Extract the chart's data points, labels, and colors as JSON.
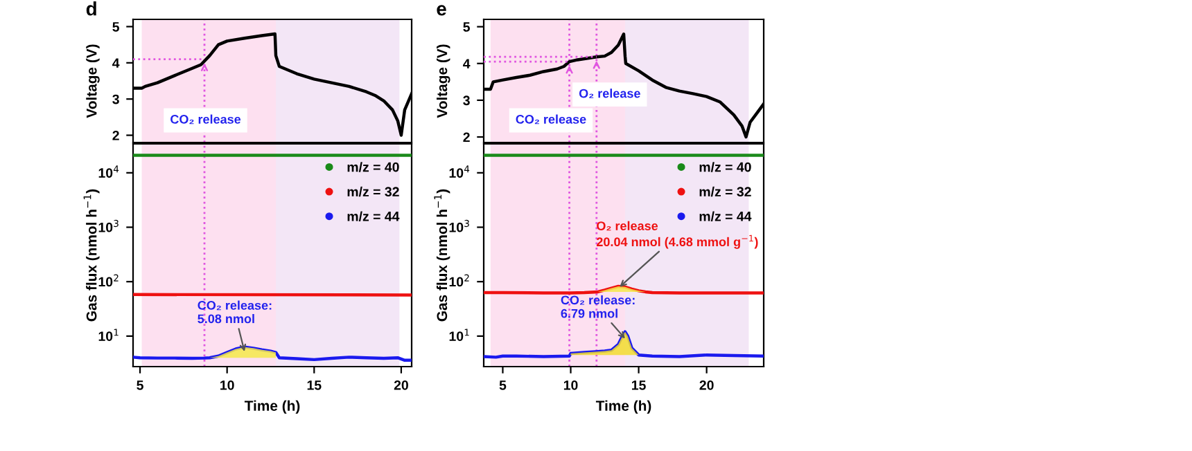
{
  "chart_data": [
    {
      "type": "line",
      "title": "d",
      "ylabel": "Voltage (V)",
      "xlim": [
        4.6,
        20.6
      ],
      "xticks": [
        5,
        10,
        15,
        20
      ],
      "ylim": [
        1.8,
        5.2
      ],
      "yticks": [
        2,
        3,
        4,
        5
      ],
      "tick_labels": "y",
      "grid": false,
      "legend": false,
      "bands": [
        {
          "axis": "x",
          "from": 5.1,
          "to": 12.8,
          "color": "#fde0f0"
        },
        {
          "axis": "x",
          "from": 12.8,
          "to": 19.9,
          "color": "#f3e6f6"
        }
      ],
      "ref_lines": [
        {
          "axis": "x",
          "value": 8.7,
          "color": "#e055e0",
          "line_style": "dotted"
        }
      ],
      "series": [
        {
          "color": "#000000",
          "x": [
            4.6,
            5.1,
            5.3,
            6,
            7,
            8,
            8.5,
            9,
            9.5,
            10,
            11,
            12,
            12.75,
            12.8,
            13,
            14,
            15,
            16,
            17,
            18,
            18.5,
            19,
            19.5,
            19.8,
            20.0,
            20.2,
            20.6
          ],
          "values": [
            3.3,
            3.3,
            3.35,
            3.45,
            3.65,
            3.85,
            3.95,
            4.2,
            4.5,
            4.6,
            4.68,
            4.75,
            4.8,
            4.2,
            3.9,
            3.7,
            3.55,
            3.45,
            3.35,
            3.2,
            3.1,
            2.95,
            2.7,
            2.4,
            2.0,
            2.7,
            3.15
          ]
        },
        {
          "color": "#e055e0",
          "line_style": "dotted",
          "x": [
            4.6,
            8.7
          ],
          "values": [
            4.1,
            4.1
          ]
        }
      ],
      "annotations": [
        "CO₂ release"
      ]
    },
    {
      "type": "line",
      "xlabel": "Time (h)",
      "ylabel": "Gas flux (nmol h$^{−1}$)",
      "log": "y",
      "xlim": [
        4.6,
        20.6
      ],
      "xticks": [
        5,
        10,
        15,
        20
      ],
      "ylim": [
        2.75,
        34000
      ],
      "yticks": [
        {
          "value": 10,
          "label": "10$^{1}$"
        },
        {
          "value": 100,
          "label": "10$^{2}$"
        },
        {
          "value": 1000,
          "label": "10$^{3}$"
        },
        {
          "value": 10000,
          "label": "10$^{4}$"
        }
      ],
      "grid": false,
      "legend": "upper right",
      "bands": [
        {
          "axis": "x",
          "from": 5.1,
          "to": 12.8,
          "color": "#fde0f0"
        },
        {
          "axis": "x",
          "from": 12.8,
          "to": 19.9,
          "color": "#f3e6f6"
        }
      ],
      "ref_lines": [
        {
          "axis": "x",
          "value": 8.7,
          "color": "#e055e0",
          "line_style": "dotted"
        }
      ],
      "series": [
        {
          "name": "m/z = 40",
          "color": "#1a8a1a",
          "x": [
            4.6,
            20.6
          ],
          "values": [
            21000,
            21000
          ]
        },
        {
          "name": "m/z = 32",
          "color": "#ee1111",
          "x": [
            4.6,
            20.6
          ],
          "values": [
            58,
            57
          ]
        },
        {
          "type": "area",
          "color": "#f5e94a",
          "x": [
            9,
            9.5,
            10,
            10.5,
            11,
            11.5,
            12,
            12.5,
            12.8
          ],
          "values": [
            4.0,
            4.3,
            5.0,
            5.8,
            6.3,
            6.0,
            5.6,
            5.3,
            5.0
          ]
        },
        {
          "name": "m/z = 44",
          "color": "#1a1aee",
          "x": [
            4.6,
            5,
            6,
            7,
            8,
            8.7,
            9,
            9.5,
            10,
            10.5,
            11,
            11.5,
            12,
            12.5,
            12.8,
            13,
            14,
            15,
            16,
            17,
            18,
            19,
            19.8,
            20.2,
            20.6
          ],
          "values": [
            4.1,
            4.0,
            3.95,
            3.95,
            3.9,
            3.95,
            4.0,
            4.3,
            5.0,
            5.8,
            6.3,
            6.0,
            5.6,
            5.3,
            5.0,
            4.0,
            3.85,
            3.7,
            3.9,
            4.1,
            4.0,
            3.9,
            4.0,
            3.6,
            3.6
          ]
        }
      ],
      "annotations": [
        {
          "text": "CO₂ release:\n5.08 nmol",
          "x": 11,
          "y": 5.2
        }
      ]
    },
    {
      "type": "line",
      "title": "e",
      "ylabel": "Voltage (V)",
      "xlim": [
        3.6,
        24.2
      ],
      "xticks": [
        5,
        10,
        15,
        20
      ],
      "ylim": [
        1.85,
        5.2
      ],
      "yticks": [
        2,
        3,
        4,
        5
      ],
      "tick_labels": "y",
      "grid": false,
      "legend": false,
      "bands": [
        {
          "axis": "x",
          "from": 4.1,
          "to": 14.0,
          "color": "#fde0f0"
        },
        {
          "axis": "x",
          "from": 14.0,
          "to": 23.1,
          "color": "#f3e6f6"
        }
      ],
      "ref_lines": [
        {
          "axis": "x",
          "value": 9.9,
          "color": "#e055e0",
          "line_style": "dotted"
        },
        {
          "axis": "x",
          "value": 11.9,
          "color": "#e055e0",
          "line_style": "dotted"
        }
      ],
      "series": [
        {
          "color": "#000000",
          "x": [
            3.6,
            4.1,
            4.3,
            5,
            6,
            7,
            8,
            9,
            9.5,
            9.9,
            10.5,
            11.9,
            12.5,
            13,
            13.5,
            13.9,
            14.0,
            14.05,
            15,
            16,
            17,
            18,
            19,
            20,
            21,
            22,
            22.6,
            22.9,
            23.2,
            23.8,
            24.2
          ],
          "values": [
            3.3,
            3.3,
            3.5,
            3.55,
            3.62,
            3.68,
            3.78,
            3.85,
            3.92,
            4.05,
            4.1,
            4.18,
            4.2,
            4.3,
            4.5,
            4.8,
            4.2,
            4.0,
            3.8,
            3.55,
            3.35,
            3.25,
            3.18,
            3.1,
            2.95,
            2.6,
            2.3,
            2.0,
            2.4,
            2.7,
            2.9
          ]
        },
        {
          "color": "#e055e0",
          "line_style": "dotted",
          "x": [
            3.6,
            9.9
          ],
          "values": [
            4.05,
            4.05
          ]
        },
        {
          "color": "#e055e0",
          "line_style": "dotted",
          "x": [
            3.6,
            11.9
          ],
          "values": [
            4.18,
            4.18
          ]
        }
      ],
      "annotations": [
        "CO₂ release",
        "O₂ release"
      ]
    },
    {
      "type": "line",
      "xlabel": "Time (h)",
      "ylabel": "Gas flux (nmol h$^{−1}$)",
      "log": "y",
      "xlim": [
        3.6,
        24.2
      ],
      "xticks": [
        5,
        10,
        15,
        20
      ],
      "ylim": [
        2.75,
        34000
      ],
      "yticks": [
        {
          "value": 10,
          "label": "10$^{1}$"
        },
        {
          "value": 100,
          "label": "10$^{2}$"
        },
        {
          "value": 1000,
          "label": "10$^{3}$"
        },
        {
          "value": 10000,
          "label": "10$^{4}$"
        }
      ],
      "grid": false,
      "legend": "upper right",
      "bands": [
        {
          "axis": "x",
          "from": 4.1,
          "to": 14.0,
          "color": "#fde0f0"
        },
        {
          "axis": "x",
          "from": 14.0,
          "to": 23.1,
          "color": "#f3e6f6"
        }
      ],
      "ref_lines": [
        {
          "axis": "x",
          "value": 9.9,
          "color": "#e055e0",
          "line_style": "dotted"
        },
        {
          "axis": "x",
          "value": 11.9,
          "color": "#e055e0",
          "line_style": "dotted"
        }
      ],
      "series": [
        {
          "name": "m/z = 40",
          "color": "#1a8a1a",
          "x": [
            3.6,
            24.2
          ],
          "values": [
            21000,
            21000
          ]
        },
        {
          "type": "area",
          "color": "#f5e94a",
          "x": [
            12,
            12.5,
            13,
            13.5,
            14,
            14.5,
            15,
            15.5
          ],
          "values": [
            65,
            70,
            76,
            82,
            80,
            73,
            68,
            65
          ]
        },
        {
          "name": "m/z = 32",
          "color": "#ee1111",
          "x": [
            3.6,
            5,
            8,
            10,
            11,
            12,
            12.5,
            13,
            13.5,
            14,
            14.5,
            15,
            15.5,
            16,
            18,
            20,
            22,
            24.2
          ],
          "values": [
            63,
            63,
            62,
            62,
            63,
            65,
            70,
            76,
            82,
            80,
            73,
            68,
            65,
            63,
            62,
            62,
            62,
            62
          ]
        },
        {
          "type": "area",
          "color": "#f2dc2e",
          "x": [
            10,
            10.5,
            11,
            12,
            12.5,
            13,
            13.5,
            13.8,
            14,
            14.2,
            14.5,
            15
          ],
          "values": [
            4.8,
            4.9,
            5.0,
            5.2,
            5.3,
            5.5,
            7,
            10,
            12,
            10,
            6,
            4.5
          ]
        },
        {
          "name": "m/z = 44",
          "color": "#1a1aee",
          "x": [
            3.6,
            4.5,
            5,
            6,
            8,
            9.9,
            10,
            10.5,
            11,
            12,
            12.5,
            13,
            13.5,
            13.8,
            14,
            14.2,
            14.5,
            15,
            16,
            18,
            20,
            22,
            24.2
          ],
          "values": [
            4.2,
            4.1,
            4.3,
            4.3,
            4.2,
            4.3,
            4.8,
            4.9,
            5.0,
            5.2,
            5.3,
            5.5,
            7,
            10,
            12,
            10,
            6,
            4.5,
            4.3,
            4.2,
            4.5,
            4.4,
            4.3
          ]
        }
      ],
      "annotations": [
        {
          "text": "O₂ release\n20.04 nmol (4.68 mmol g$^{−1}$)",
          "x": 13.6,
          "y": 80
        },
        {
          "text": "CO₂ release:\n6.79 nmol",
          "x": 14,
          "y": 9
        }
      ]
    }
  ]
}
